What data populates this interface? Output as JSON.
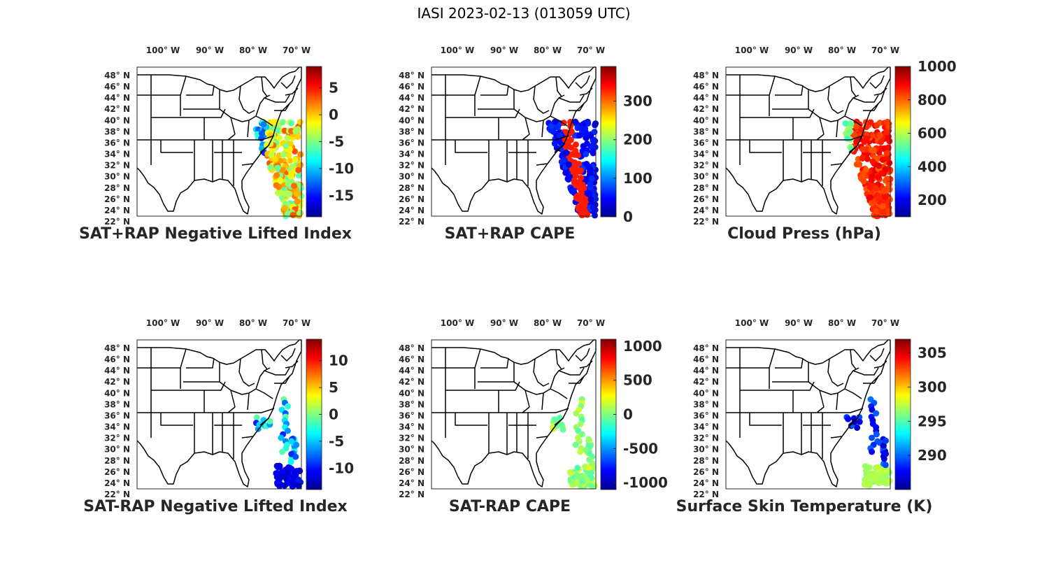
{
  "figure_title": "IASI 2023-02-13 (013059 UTC)",
  "map": {
    "lon_tick_labels": [
      "100° W",
      "90° W",
      "80° W",
      "70° W"
    ],
    "lat_tick_labels": [
      "48° N",
      "46° N",
      "44° N",
      "42° N",
      "40° N",
      "38° N",
      "36° N",
      "34° N",
      "32° N",
      "30° N",
      "28° N",
      "26° N",
      "24° N",
      "22° N"
    ],
    "lon_range": [
      -107,
      -67
    ],
    "lat_range": [
      22,
      50
    ],
    "basemap": "contiguous US state boundaries"
  },
  "panels": [
    {
      "id": "p1",
      "title": "SAT+RAP Negative Lifted Index",
      "colormap": "jet",
      "clim": [
        -19,
        9
      ],
      "colorbar_ticks": [
        5,
        0,
        -5,
        -10,
        -15
      ],
      "swath": "full"
    },
    {
      "id": "p2",
      "title": "SAT+RAP CAPE",
      "colormap": "jet",
      "clim": [
        0,
        390
      ],
      "colorbar_ticks": [
        300,
        200,
        100,
        0
      ],
      "swath": "full"
    },
    {
      "id": "p3",
      "title": "Cloud Press (hPa)",
      "colormap": "jet",
      "clim": [
        100,
        1000
      ],
      "colorbar_ticks": [
        1000,
        800,
        600,
        400,
        200
      ],
      "swath": "partial"
    },
    {
      "id": "p4",
      "title": "SAT-RAP Negative Lifted Index",
      "colormap": "jet",
      "clim": [
        -14,
        14
      ],
      "colorbar_ticks": [
        10,
        5,
        0,
        -5,
        -10
      ],
      "swath": "points"
    },
    {
      "id": "p5",
      "title": "SAT-RAP CAPE",
      "colormap": "jet",
      "clim": [
        -1100,
        1100
      ],
      "colorbar_ticks": [
        1000,
        500,
        0,
        -500,
        -1000
      ],
      "swath": "points"
    },
    {
      "id": "p6",
      "title": "Surface Skin Temperature (K)",
      "colormap": "jet",
      "clim": [
        285,
        307
      ],
      "colorbar_ticks": [
        305,
        300,
        295,
        290
      ],
      "swath": "points"
    }
  ]
}
